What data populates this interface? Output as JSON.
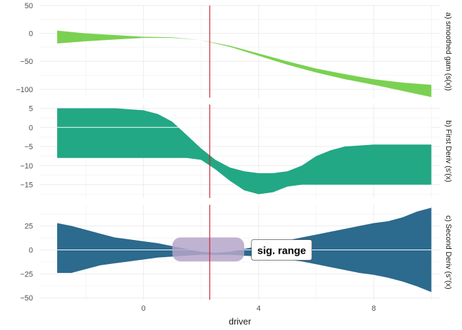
{
  "chart_data": {
    "type": "area",
    "xlabel": "driver",
    "x_ticks": [
      0,
      4,
      8
    ],
    "xlim": [
      -3.6,
      10.3
    ],
    "vline_x": 2.3,
    "vline_color": "#cc1f2b",
    "grid": true,
    "panels": [
      {
        "strip_label": "a) smoothed gam (s(x))",
        "fill_color": "#7ad151",
        "ylim": [
          -115,
          50
        ],
        "y_ticks": [
          50,
          0,
          -50,
          -100
        ],
        "x": [
          -3,
          -2,
          -1,
          0,
          1,
          2,
          3,
          4,
          5,
          6,
          7,
          8,
          9,
          10
        ],
        "upper": [
          5,
          0,
          -3,
          -6,
          -7,
          -12,
          -22,
          -36,
          -50,
          -63,
          -73,
          -82,
          -88,
          -92
        ],
        "lower": [
          -18,
          -14,
          -11,
          -8,
          -8,
          -12,
          -24,
          -40,
          -56,
          -70,
          -82,
          -92,
          -103,
          -114
        ],
        "zero_line": false
      },
      {
        "strip_label": "b) First Deriv (s'(x)",
        "fill_color": "#22a884",
        "ylim": [
          -18.5,
          6
        ],
        "y_ticks": [
          5,
          0,
          -5,
          -10,
          -15
        ],
        "x": [
          -3,
          -2,
          -1,
          0,
          0.5,
          1,
          1.5,
          2,
          2.5,
          3,
          3.5,
          4,
          4.5,
          5,
          5.5,
          6,
          6.5,
          7,
          8,
          9,
          10
        ],
        "upper": [
          5,
          5,
          5,
          4.5,
          3.5,
          1.5,
          -2,
          -5.5,
          -8.5,
          -10.5,
          -11.5,
          -12,
          -12,
          -11.5,
          -10,
          -7.5,
          -6,
          -5,
          -4.5,
          -4.5,
          -4.5
        ],
        "lower": [
          -8,
          -8,
          -8,
          -8,
          -8,
          -8,
          -8,
          -8.5,
          -11,
          -14,
          -16.5,
          -17.5,
          -17,
          -15.5,
          -15,
          -15,
          -15,
          -15,
          -15,
          -15,
          -15
        ],
        "zero_line": true
      },
      {
        "strip_label": "c) Second Deriv (s''(x)",
        "fill_color": "#2c6a8e",
        "ylim": [
          -52,
          47
        ],
        "y_ticks": [
          25,
          0,
          -25,
          -50
        ],
        "x": [
          -3,
          -2.5,
          -2,
          -1.5,
          -1,
          -0.5,
          0,
          0.5,
          1,
          1.5,
          2,
          2.5,
          3,
          3.5,
          4,
          4.5,
          5,
          5.5,
          6,
          6.5,
          7,
          7.5,
          8,
          8.5,
          9,
          9.5,
          10
        ],
        "upper": [
          28,
          25,
          21,
          17,
          13,
          11,
          9,
          7,
          4,
          1,
          -2,
          -3,
          -2,
          1,
          4,
          7,
          10,
          13,
          16,
          19,
          22,
          25,
          28,
          30,
          34,
          40,
          44
        ],
        "lower": [
          -24,
          -24,
          -20,
          -16,
          -14,
          -12,
          -10,
          -8,
          -7,
          -6,
          -5,
          -5,
          -5,
          -6,
          -7,
          -8,
          -10,
          -12,
          -15,
          -18,
          -21,
          -24,
          -26,
          -29,
          -33,
          -38,
          -44
        ],
        "zero_line": true,
        "highlight_x": [
          1,
          3.5
        ],
        "highlight_y": [
          -12,
          13
        ],
        "highlight_color": "#b5a6c9",
        "annotation": "sig. range"
      }
    ]
  }
}
